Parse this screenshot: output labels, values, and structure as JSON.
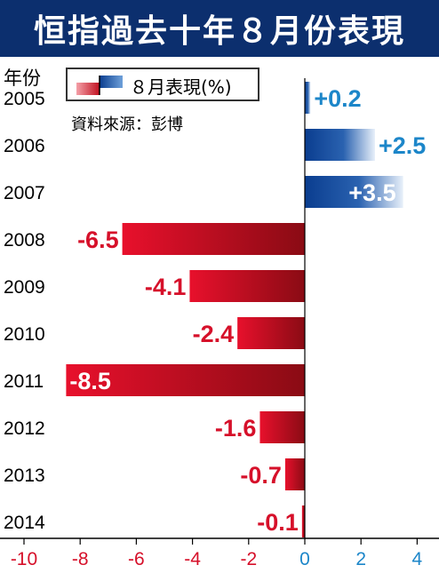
{
  "title": "恒指過去十年８月份表現",
  "year_header": "年份",
  "legend": {
    "label": "８月表現(%)"
  },
  "source": "資料來源：彭博",
  "colors": {
    "title_bg": "#0c2f6e",
    "positive": "#0a3d8f",
    "positive_light": "#ffffff",
    "negative": "#d6102a",
    "negative_dark": "#8a0b14",
    "positive_text": "#1c86c9",
    "negative_text": "#d6102a"
  },
  "chart_data": {
    "type": "bar",
    "orientation": "horizontal",
    "categories": [
      "2005",
      "2006",
      "2007",
      "2008",
      "2009",
      "2010",
      "2011",
      "2012",
      "2013",
      "2014"
    ],
    "values": [
      0.2,
      2.5,
      3.5,
      -6.5,
      -4.1,
      -2.4,
      -8.5,
      -1.6,
      -0.7,
      -0.1
    ],
    "value_labels": [
      "+0.2",
      "+2.5",
      "+3.5",
      "-6.5",
      "-4.1",
      "-2.4",
      "-8.5",
      "-1.6",
      "-0.7",
      "-0.1"
    ],
    "xlim": [
      -10,
      4
    ],
    "x_ticks": [
      "-10",
      "-8",
      "-6",
      "-4",
      "-2",
      "0",
      "2",
      "4"
    ],
    "x_tick_values": [
      -10,
      -8,
      -6,
      -4,
      -2,
      0,
      2,
      4
    ],
    "grid": false,
    "legend_position": "top-left"
  }
}
